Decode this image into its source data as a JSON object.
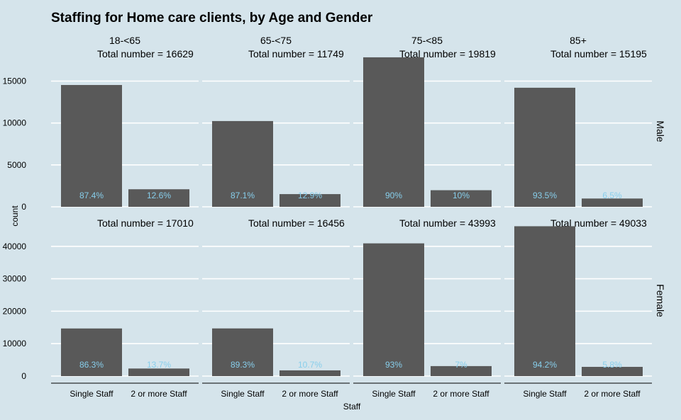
{
  "chart_data": {
    "type": "bar",
    "title": "Staffing for Home care clients, by Age and Gender",
    "xlabel": "Staff",
    "ylabel": "count",
    "categories": [
      "Single Staff",
      "2 or more Staff"
    ],
    "facet_columns": [
      "18-<65",
      "65-<75",
      "75-<85",
      "85+"
    ],
    "facet_rows": [
      "Male",
      "Female"
    ],
    "colors": {
      "background": "#d5e4eb",
      "bar": "#595959",
      "grid": "#ffffff",
      "percent_label": "#87ceeb",
      "text": "#000000"
    },
    "panels": [
      {
        "row": "Male",
        "ylim": [
          0,
          18000
        ],
        "yticks": [
          0,
          5000,
          10000,
          15000
        ],
        "facets": [
          {
            "column": "18-<65",
            "total_label": "Total number = 16629",
            "values": [
              14534,
              2095
            ],
            "percent_labels": [
              "87.4%",
              "12.6%"
            ]
          },
          {
            "column": "65-<75",
            "total_label": "Total number = 11749",
            "values": [
              10233,
              1516
            ],
            "percent_labels": [
              "87.1%",
              "12.9%"
            ]
          },
          {
            "column": "75-<85",
            "total_label": "Total number = 19819",
            "values": [
              17837,
              1982
            ],
            "percent_labels": [
              "90%",
              "10%"
            ]
          },
          {
            "column": "85+",
            "total_label": "Total number = 15195",
            "values": [
              14207,
              988
            ],
            "percent_labels": [
              "93.5%",
              "6.5%"
            ]
          }
        ]
      },
      {
        "row": "Female",
        "ylim": [
          0,
          46500
        ],
        "yticks": [
          0,
          10000,
          20000,
          30000,
          40000
        ],
        "facets": [
          {
            "column": "18-<65",
            "total_label": "Total number = 17010",
            "values": [
              14680,
              2330
            ],
            "percent_labels": [
              "86.3%",
              "13.7%"
            ]
          },
          {
            "column": "65-<75",
            "total_label": "Total number = 16456",
            "values": [
              14695,
              1761
            ],
            "percent_labels": [
              "89.3%",
              "10.7%"
            ]
          },
          {
            "column": "75-<85",
            "total_label": "Total number = 43993",
            "values": [
              40913,
              3080
            ],
            "percent_labels": [
              "93%",
              "7%"
            ]
          },
          {
            "column": "85+",
            "total_label": "Total number = 49033",
            "values": [
              46189,
              2844
            ],
            "percent_labels": [
              "94.2%",
              "5.8%"
            ]
          }
        ]
      }
    ]
  }
}
